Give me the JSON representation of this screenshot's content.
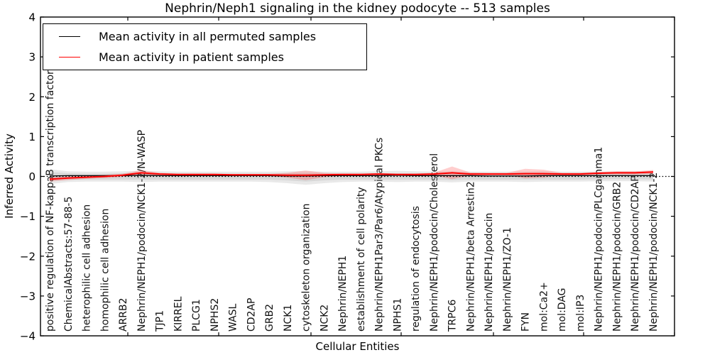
{
  "figure": {
    "title": "Nephrin/Neph1 signaling in the kidney podocyte -- 513 samples",
    "xlabel": "Cellular Entities",
    "ylabel": "Inferred Activity"
  },
  "legend": {
    "entries": [
      {
        "label": "Mean activity in all permuted samples",
        "color": "#000000"
      },
      {
        "label": "Mean activity in patient samples",
        "color": "#ff0000"
      }
    ]
  },
  "chart_data": {
    "type": "line",
    "title": "Nephrin/Neph1 signaling in the kidney podocyte -- 513 samples",
    "xlabel": "Cellular Entities",
    "ylabel": "Inferred Activity",
    "ylim": [
      -4,
      4
    ],
    "yticks": [
      4,
      3,
      2,
      1,
      0,
      -1,
      -2,
      -3,
      -4
    ],
    "grid": false,
    "legend_position": "upper left",
    "zero_reference_line": {
      "value": 0,
      "style": "dotted",
      "color": "#000000"
    },
    "categories": [
      "positive regulation of NF-kappaB transcription factor activity",
      "ChemicalAbstracts:57-88-5",
      "heterophilic cell adhesion",
      "homophilic cell adhesion",
      "ARRB2",
      "Nephrin/NEPH1/podocin/NCK1-2/N-WASP",
      "TJP1",
      "KIRREL",
      "PLCG1",
      "NPHS2",
      "WASL",
      "CD2AP",
      "GRB2",
      "NCK1",
      "cytoskeleton organization",
      "NCK2",
      "Nephrin/NEPH1",
      "establishment of cell polarity",
      "Nephrin/NEPH1Par3/Par6/Atypical PKCs",
      "NPHS1",
      "regulation of endocytosis",
      "Nephrin/NEPH1/podocin/Cholesterol",
      "TRPC6",
      "Nephrin/NEPH1/beta Arrestin2",
      "Nephrin/NEPH1/podocin",
      "Nephrin/NEPH1/ZO-1",
      "FYN",
      "mol:Ca2+",
      "mol:DAG",
      "mol:IP3",
      "Nephrin/NEPH1/podocin/PLCgamma1",
      "Nephrin/NEPH1/podocin/GRB2",
      "Nephrin/NEPH1/podocin/CD2AP",
      "Nephrin/NEPH1/podocin/NCK1-2"
    ],
    "series": [
      {
        "name": "Mean activity in all permuted samples",
        "color": "#000000",
        "values": [
          0.01,
          0.02,
          0.02,
          0.02,
          0.02,
          0.03,
          0.02,
          0.02,
          0.02,
          0.02,
          0.02,
          0.02,
          0.02,
          0.01,
          0.01,
          0.02,
          0.02,
          0.02,
          0.02,
          0.03,
          0.02,
          0.02,
          0.02,
          0.02,
          0.01,
          0.01,
          0.01,
          0.02,
          0.02,
          0.02,
          0.02,
          0.02,
          0.02,
          0.02
        ]
      },
      {
        "name": "Mean activity in patient samples",
        "color": "#ff0000",
        "values": [
          -0.07,
          -0.04,
          -0.02,
          0.0,
          0.03,
          0.09,
          0.06,
          0.05,
          0.05,
          0.05,
          0.04,
          0.04,
          0.04,
          0.03,
          0.03,
          0.04,
          0.05,
          0.05,
          0.06,
          0.05,
          0.05,
          0.06,
          0.09,
          0.06,
          0.06,
          0.06,
          0.07,
          0.07,
          0.06,
          0.06,
          0.08,
          0.09,
          0.09,
          0.11
        ]
      }
    ],
    "bands": [
      {
        "name": "permuted-samples-range-outer",
        "color": "#999999",
        "opacity": 0.22,
        "upper": [
          0.18,
          0.13,
          0.12,
          0.12,
          0.13,
          0.14,
          0.13,
          0.12,
          0.12,
          0.12,
          0.12,
          0.12,
          0.12,
          0.13,
          0.13,
          0.12,
          0.12,
          0.12,
          0.13,
          0.14,
          0.13,
          0.12,
          0.13,
          0.12,
          0.12,
          0.12,
          0.12,
          0.13,
          0.12,
          0.12,
          0.12,
          0.13,
          0.13,
          0.14
        ],
        "lower": [
          -0.19,
          -0.14,
          -0.13,
          -0.13,
          -0.13,
          -0.14,
          -0.13,
          -0.13,
          -0.13,
          -0.13,
          -0.13,
          -0.13,
          -0.14,
          -0.17,
          -0.21,
          -0.17,
          -0.14,
          -0.13,
          -0.13,
          -0.14,
          -0.13,
          -0.13,
          -0.15,
          -0.13,
          -0.13,
          -0.13,
          -0.14,
          -0.13,
          -0.13,
          -0.13,
          -0.12,
          -0.12,
          -0.12,
          -0.13
        ]
      },
      {
        "name": "permuted-samples-range-inner",
        "color": "#999999",
        "opacity": 0.22,
        "upper": [
          0.11,
          0.08,
          0.07,
          0.07,
          0.08,
          0.08,
          0.08,
          0.07,
          0.07,
          0.07,
          0.07,
          0.07,
          0.07,
          0.08,
          0.08,
          0.07,
          0.07,
          0.07,
          0.08,
          0.08,
          0.08,
          0.07,
          0.08,
          0.07,
          0.07,
          0.07,
          0.07,
          0.08,
          0.07,
          0.07,
          0.07,
          0.08,
          0.08,
          0.08
        ],
        "lower": [
          -0.11,
          -0.08,
          -0.08,
          -0.08,
          -0.08,
          -0.08,
          -0.08,
          -0.08,
          -0.08,
          -0.08,
          -0.08,
          -0.08,
          -0.08,
          -0.1,
          -0.13,
          -0.1,
          -0.08,
          -0.08,
          -0.08,
          -0.08,
          -0.08,
          -0.08,
          -0.09,
          -0.08,
          -0.08,
          -0.08,
          -0.08,
          -0.08,
          -0.08,
          -0.08,
          -0.07,
          -0.07,
          -0.07,
          -0.08
        ]
      },
      {
        "name": "patient-samples-range",
        "color": "#ff2222",
        "opacity": 0.22,
        "upper": [
          -0.02,
          0.0,
          0.02,
          0.04,
          0.07,
          0.16,
          0.09,
          0.07,
          0.07,
          0.07,
          0.06,
          0.06,
          0.06,
          0.09,
          0.15,
          0.09,
          0.07,
          0.07,
          0.08,
          0.07,
          0.07,
          0.09,
          0.25,
          0.1,
          0.09,
          0.09,
          0.19,
          0.17,
          0.09,
          0.09,
          0.11,
          0.13,
          0.13,
          0.16
        ],
        "lower": [
          -0.13,
          -0.09,
          -0.06,
          -0.04,
          -0.01,
          0.03,
          0.03,
          0.03,
          0.03,
          0.03,
          0.02,
          0.02,
          0.02,
          -0.03,
          -0.09,
          -0.02,
          0.02,
          0.03,
          0.03,
          0.03,
          0.03,
          0.03,
          -0.07,
          0.02,
          0.03,
          0.03,
          -0.05,
          -0.03,
          0.03,
          0.03,
          0.05,
          0.05,
          0.05,
          0.06
        ]
      }
    ]
  }
}
